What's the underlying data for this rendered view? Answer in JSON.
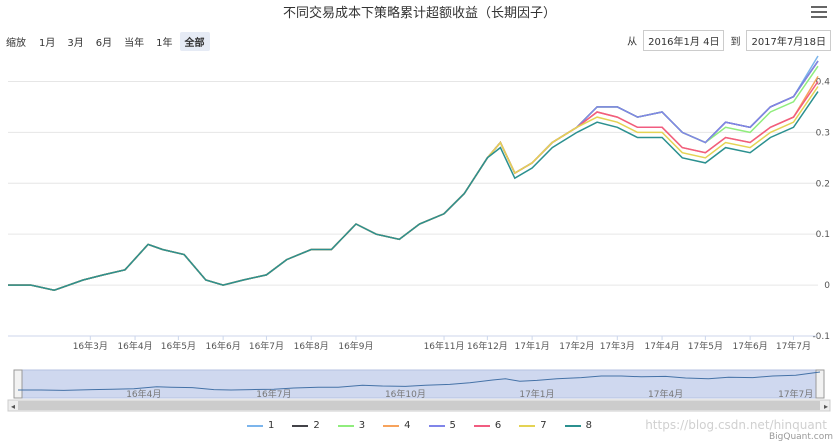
{
  "chart_data": {
    "type": "line",
    "title": "不同交易成本下策略累计超额收益（长期因子）",
    "xlabel": "",
    "ylabel": "",
    "x_range": [
      "2016-01-04",
      "2017-07-18"
    ],
    "ylim": [
      -0.1,
      0.45
    ],
    "y_ticks": [
      "-0.1",
      "0",
      "0.1",
      "0.2",
      "0.3",
      "0.4"
    ],
    "x_ticks": [
      "16年3月",
      "16年4月",
      "16年5月",
      "16年6月",
      "16年7月",
      "16年8月",
      "16年9月",
      "16年11月",
      "16年12月",
      "17年1月",
      "17年2月",
      "17年3月",
      "17年4月",
      "17年5月",
      "17年6月",
      "17年7月"
    ],
    "x_tick_dates": [
      "2016-03-01",
      "2016-04-01",
      "2016-05-01",
      "2016-06-01",
      "2016-07-01",
      "2016-08-01",
      "2016-09-01",
      "2016-11-01",
      "2016-12-01",
      "2017-01-01",
      "2017-02-01",
      "2017-03-01",
      "2017-04-01",
      "2017-05-01",
      "2017-06-01",
      "2017-07-01"
    ],
    "grid": true,
    "legend_position": "bottom",
    "dates": [
      "2016-01-04",
      "2016-01-20",
      "2016-02-05",
      "2016-02-25",
      "2016-03-10",
      "2016-03-25",
      "2016-04-10",
      "2016-04-20",
      "2016-05-05",
      "2016-05-20",
      "2016-06-01",
      "2016-06-15",
      "2016-07-01",
      "2016-07-15",
      "2016-08-01",
      "2016-08-15",
      "2016-09-01",
      "2016-09-15",
      "2016-10-01",
      "2016-10-15",
      "2016-11-01",
      "2016-11-15",
      "2016-12-01",
      "2016-12-10",
      "2016-12-20",
      "2017-01-01",
      "2017-01-15",
      "2017-02-01",
      "2017-02-15",
      "2017-03-01",
      "2017-03-15",
      "2017-04-01",
      "2017-04-15",
      "2017-05-01",
      "2017-05-15",
      "2017-06-01",
      "2017-06-15",
      "2017-07-01",
      "2017-07-18"
    ],
    "series": [
      {
        "name": "1",
        "color": "#7cb5ec",
        "values": [
          0.0,
          0.0,
          -0.01,
          0.01,
          0.02,
          0.03,
          0.08,
          0.07,
          0.06,
          0.01,
          0.0,
          0.01,
          0.02,
          0.05,
          0.07,
          0.07,
          0.12,
          0.1,
          0.09,
          0.12,
          0.14,
          0.18,
          0.25,
          0.28,
          0.22,
          0.24,
          0.28,
          0.31,
          0.35,
          0.35,
          0.33,
          0.34,
          0.3,
          0.28,
          0.32,
          0.31,
          0.35,
          0.37,
          0.45
        ]
      },
      {
        "name": "2",
        "color": "#434348",
        "values": [
          0.0,
          0.0,
          -0.01,
          0.01,
          0.02,
          0.03,
          0.08,
          0.07,
          0.06,
          0.01,
          0.0,
          0.01,
          0.02,
          0.05,
          0.07,
          0.07,
          0.12,
          0.1,
          0.09,
          0.12,
          0.14,
          0.18,
          0.25,
          0.28,
          0.22,
          0.24,
          0.28,
          0.31,
          0.35,
          0.35,
          0.33,
          0.34,
          0.3,
          0.28,
          0.32,
          0.31,
          0.35,
          0.37,
          0.44
        ]
      },
      {
        "name": "3",
        "color": "#90ed7d",
        "values": [
          0.0,
          0.0,
          -0.01,
          0.01,
          0.02,
          0.03,
          0.08,
          0.07,
          0.06,
          0.01,
          0.0,
          0.01,
          0.02,
          0.05,
          0.07,
          0.07,
          0.12,
          0.1,
          0.09,
          0.12,
          0.14,
          0.18,
          0.25,
          0.28,
          0.22,
          0.24,
          0.28,
          0.31,
          0.35,
          0.35,
          0.33,
          0.34,
          0.3,
          0.28,
          0.31,
          0.3,
          0.34,
          0.36,
          0.43
        ]
      },
      {
        "name": "4",
        "color": "#f7a35c",
        "values": [
          0.0,
          0.0,
          -0.01,
          0.01,
          0.02,
          0.03,
          0.08,
          0.07,
          0.06,
          0.01,
          0.0,
          0.01,
          0.02,
          0.05,
          0.07,
          0.07,
          0.12,
          0.1,
          0.09,
          0.12,
          0.14,
          0.18,
          0.25,
          0.28,
          0.22,
          0.24,
          0.28,
          0.31,
          0.34,
          0.33,
          0.31,
          0.31,
          0.27,
          0.26,
          0.29,
          0.28,
          0.31,
          0.33,
          0.41
        ]
      },
      {
        "name": "5",
        "color": "#8085e9",
        "values": [
          0.0,
          0.0,
          -0.01,
          0.01,
          0.02,
          0.03,
          0.08,
          0.07,
          0.06,
          0.01,
          0.0,
          0.01,
          0.02,
          0.05,
          0.07,
          0.07,
          0.12,
          0.1,
          0.09,
          0.12,
          0.14,
          0.18,
          0.25,
          0.28,
          0.22,
          0.24,
          0.28,
          0.31,
          0.35,
          0.35,
          0.33,
          0.34,
          0.3,
          0.28,
          0.32,
          0.31,
          0.35,
          0.37,
          0.44
        ]
      },
      {
        "name": "6",
        "color": "#f15c80",
        "values": [
          0.0,
          0.0,
          -0.01,
          0.01,
          0.02,
          0.03,
          0.08,
          0.07,
          0.06,
          0.01,
          0.0,
          0.01,
          0.02,
          0.05,
          0.07,
          0.07,
          0.12,
          0.1,
          0.09,
          0.12,
          0.14,
          0.18,
          0.25,
          0.28,
          0.22,
          0.24,
          0.28,
          0.31,
          0.34,
          0.33,
          0.31,
          0.31,
          0.27,
          0.26,
          0.29,
          0.28,
          0.31,
          0.33,
          0.4
        ]
      },
      {
        "name": "7",
        "color": "#e4d354",
        "values": [
          0.0,
          0.0,
          -0.01,
          0.01,
          0.02,
          0.03,
          0.08,
          0.07,
          0.06,
          0.01,
          0.0,
          0.01,
          0.02,
          0.05,
          0.07,
          0.07,
          0.12,
          0.1,
          0.09,
          0.12,
          0.14,
          0.18,
          0.25,
          0.28,
          0.22,
          0.24,
          0.28,
          0.31,
          0.33,
          0.32,
          0.3,
          0.3,
          0.26,
          0.25,
          0.28,
          0.27,
          0.3,
          0.32,
          0.39
        ]
      },
      {
        "name": "8",
        "color": "#2b908f",
        "values": [
          0.0,
          0.0,
          -0.01,
          0.01,
          0.02,
          0.03,
          0.08,
          0.07,
          0.06,
          0.01,
          0.0,
          0.01,
          0.02,
          0.05,
          0.07,
          0.07,
          0.12,
          0.1,
          0.09,
          0.12,
          0.14,
          0.18,
          0.25,
          0.27,
          0.21,
          0.23,
          0.27,
          0.3,
          0.32,
          0.31,
          0.29,
          0.29,
          0.25,
          0.24,
          0.27,
          0.26,
          0.29,
          0.31,
          0.38
        ]
      }
    ]
  },
  "toolbar": {
    "zoom_label": "缩放",
    "zoom_buttons": [
      "1月",
      "3月",
      "6月",
      "当年",
      "1年",
      "全部"
    ],
    "from_label": "从",
    "from_value": "2016年1月 4日",
    "to_label": "到",
    "to_value": "2017年7月18日"
  },
  "navigator": {
    "ticks": [
      "16年4月",
      "16年7月",
      "16年10月",
      "17年1月",
      "17年4月",
      "17年7月"
    ],
    "tick_dates": [
      "2016-04-01",
      "2016-07-01",
      "2016-10-01",
      "2017-01-01",
      "2017-04-01",
      "2017-07-01"
    ]
  },
  "watermark": "https://blog.csdn.net/hinquant",
  "credit": "BigQuant.com"
}
